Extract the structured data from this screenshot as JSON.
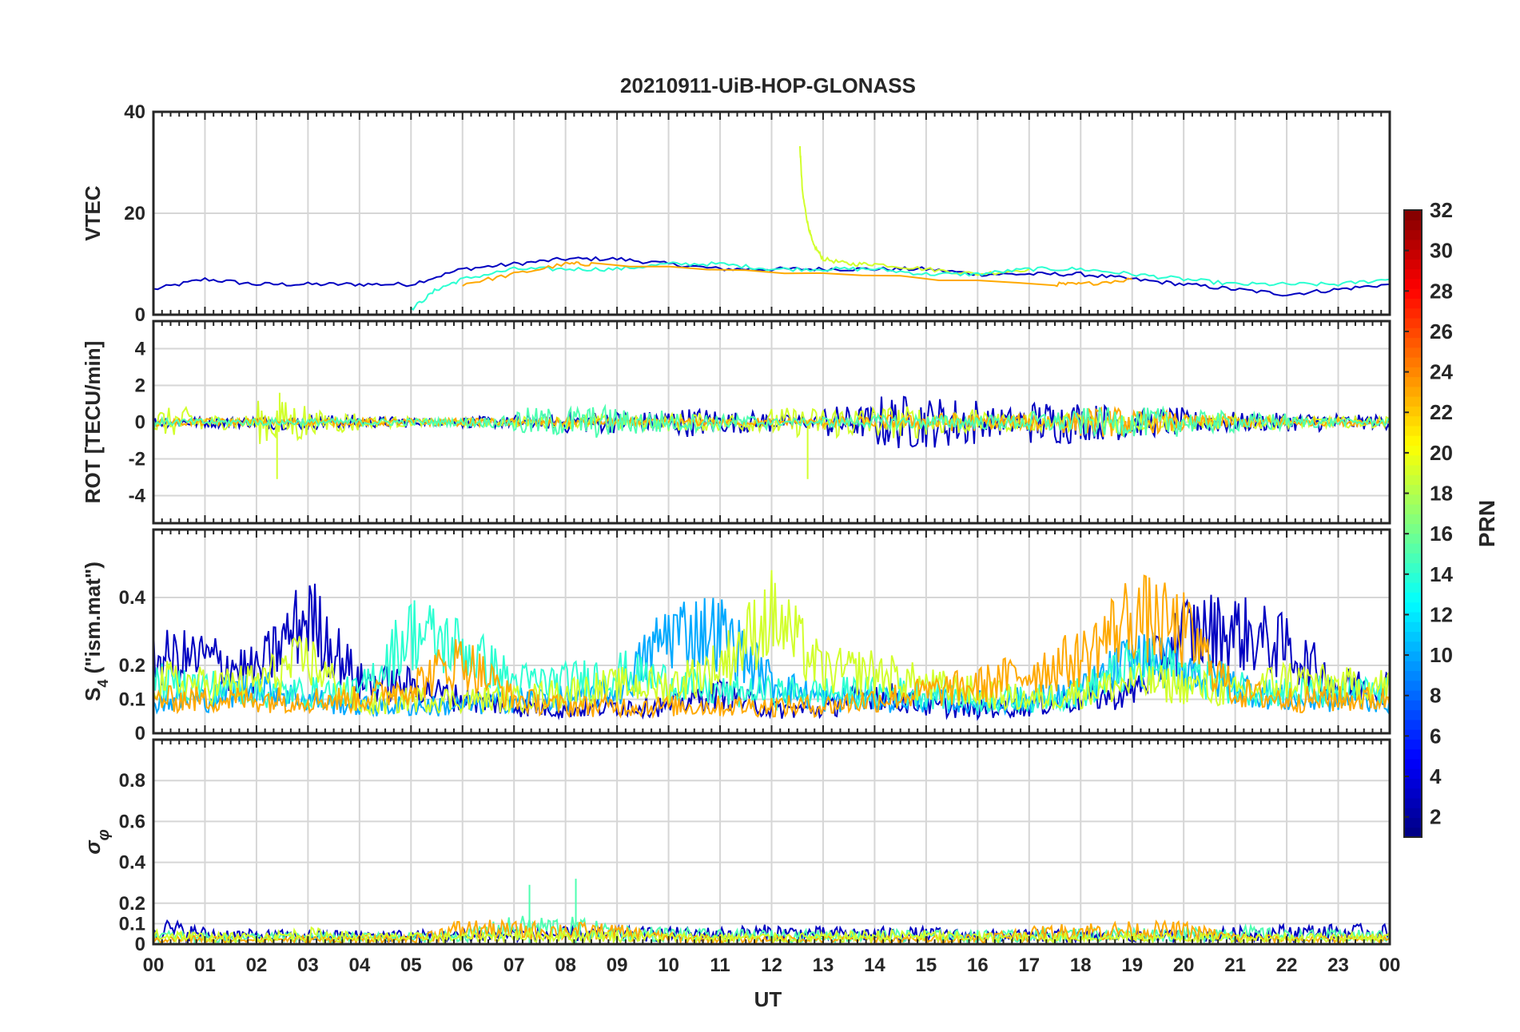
{
  "title": "20210911-UiB-HOP-GLONASS",
  "xlabel": "UT",
  "x_ticks": [
    "00",
    "01",
    "02",
    "03",
    "04",
    "05",
    "06",
    "07",
    "08",
    "09",
    "10",
    "11",
    "12",
    "13",
    "14",
    "15",
    "16",
    "17",
    "18",
    "19",
    "20",
    "21",
    "22",
    "23",
    "00"
  ],
  "colorbar": {
    "label": "PRN",
    "ticks": [
      "2",
      "4",
      "6",
      "8",
      "10",
      "12",
      "14",
      "16",
      "18",
      "20",
      "22",
      "24",
      "26",
      "28",
      "30",
      "32"
    ],
    "range": [
      1,
      32
    ],
    "colormap": "jet"
  },
  "chart_data": [
    {
      "type": "line",
      "panel": "vtec",
      "ylabel": "VTEC",
      "ylim": [
        0,
        40
      ],
      "y_ticks": [
        "0",
        "20",
        "40"
      ],
      "xlim": [
        0,
        24
      ],
      "grid": true,
      "series": [
        {
          "prn": 3,
          "x": [
            0,
            1,
            2,
            3,
            4,
            5,
            6,
            7,
            8,
            9,
            10,
            11,
            12,
            13,
            14,
            15,
            16,
            17,
            18,
            19,
            20,
            21,
            22,
            23,
            24
          ],
          "y": [
            5,
            7,
            6,
            6,
            6,
            6,
            9,
            10,
            11,
            11,
            10,
            9,
            9,
            9,
            9,
            9,
            8,
            8,
            8,
            7,
            6,
            5,
            4,
            5,
            6
          ]
        },
        {
          "prn": 19,
          "x": [
            12.55,
            12.6,
            12.7,
            12.8,
            13.0,
            13.5,
            14.0,
            15.0,
            16.0,
            17.0
          ],
          "y": [
            33,
            24,
            18,
            14,
            11,
            10,
            10,
            9,
            8,
            9
          ]
        },
        {
          "prn": 14,
          "x": [
            5.0,
            5.5,
            6.0,
            7.0,
            8.0,
            9.0,
            10.0,
            11.0,
            12.0,
            13.0,
            14.0,
            15.0,
            16.0,
            17.0,
            18.0,
            19.0,
            20.0,
            21.0,
            22.0,
            23.0,
            24.0
          ],
          "y": [
            1,
            5,
            7,
            9,
            9,
            9,
            10,
            10,
            9,
            9,
            9,
            8,
            8,
            9,
            9,
            8,
            7,
            6,
            6,
            6,
            7
          ]
        },
        {
          "prn": 23,
          "x": [
            6.0,
            7.0,
            8.0,
            8.5,
            17.5,
            18.0,
            19.0
          ],
          "y": [
            6,
            8,
            10,
            10,
            6,
            6,
            7
          ]
        }
      ]
    },
    {
      "type": "line",
      "panel": "rot",
      "ylabel": "ROT [TECU/min]",
      "ylim": [
        -5.5,
        5.5
      ],
      "y_ticks": [
        "-4",
        "-2",
        "0",
        "2",
        "4"
      ],
      "xlim": [
        0,
        24
      ],
      "grid": true,
      "series": [
        {
          "prn": 3,
          "amplitude_by_hour": [
            0.3,
            0.3,
            0.4,
            0.4,
            0.3,
            0.2,
            0.3,
            0.4,
            0.6,
            0.6,
            0.8,
            0.6,
            0.4,
            0.9,
            1.5,
            1.4,
            0.8,
            1.2,
            1.0,
            0.8,
            0.6,
            0.5,
            0.5,
            0.4
          ]
        },
        {
          "prn": 19,
          "amplitude_by_hour": [
            0.8,
            0.4,
            1.2,
            0.6,
            0.3,
            0.2,
            0.2,
            0.3,
            0.4,
            0.4,
            0.5,
            0.5,
            0.8,
            0.9,
            0.9,
            0.7,
            0.5,
            0.5,
            0.6,
            0.5,
            0.4,
            0.4,
            0.3,
            0.3
          ],
          "spikes": [
            {
              "x": 2.4,
              "y": -3.1
            },
            {
              "x": 12.7,
              "y": -3.1
            },
            {
              "x": 2.45,
              "y": 1.6
            }
          ]
        },
        {
          "prn": 23,
          "amplitude_by_hour": [
            0.2,
            0.2,
            0.2,
            0.2,
            0.2,
            0.2,
            0.2,
            0.2,
            0.2,
            0.2,
            0.2,
            0.2,
            0.2,
            0.3,
            0.4,
            0.5,
            0.4,
            0.6,
            0.8,
            0.6,
            0.4,
            0.3,
            0.2,
            0.2
          ]
        },
        {
          "prn": 15,
          "amplitude_by_hour": [
            0.2,
            0.2,
            0.2,
            0.2,
            0.2,
            0.2,
            0.3,
            0.8,
            0.9,
            0.7,
            0.5,
            0.4,
            0.2,
            0.3,
            0.4,
            0.4,
            0.4,
            0.6,
            0.8,
            0.8,
            0.6,
            0.5,
            0.3,
            0.2
          ]
        }
      ]
    },
    {
      "type": "line",
      "panel": "s4",
      "ylabel": "S4 (\"ism.mat\")",
      "ylabel_main": "S",
      "ylabel_sub": "4",
      "ylabel_rest": " (\"ism.mat\")",
      "ylim": [
        0,
        0.6
      ],
      "y_ticks": [
        "0",
        "0.1",
        "0.2",
        "0.4"
      ],
      "y_tick_values": [
        0,
        0.1,
        0.2,
        0.4
      ],
      "xlim": [
        0,
        24
      ],
      "grid": true,
      "series": [
        {
          "prn": 3,
          "level_by_hour": [
            0.22,
            0.22,
            0.18,
            0.35,
            0.15,
            0.14,
            0.1,
            0.08,
            0.07,
            0.08,
            0.08,
            0.12,
            0.07,
            0.07,
            0.12,
            0.08,
            0.07,
            0.08,
            0.1,
            0.12,
            0.3,
            0.3,
            0.25,
            0.14
          ]
        },
        {
          "prn": 10,
          "level_by_hour": [
            0.1,
            0.1,
            0.14,
            0.1,
            0.08,
            0.08,
            0.08,
            0.1,
            0.1,
            0.12,
            0.3,
            0.3,
            0.15,
            0.1,
            0.1,
            0.1,
            0.09,
            0.1,
            0.12,
            0.22,
            0.2,
            0.14,
            0.1,
            0.1
          ]
        },
        {
          "prn": 14,
          "level_by_hour": [
            0.15,
            0.14,
            0.12,
            0.12,
            0.12,
            0.3,
            0.25,
            0.15,
            0.15,
            0.18,
            0.15,
            0.12,
            0.12,
            0.12,
            0.12,
            0.12,
            0.1,
            0.1,
            0.12,
            0.2,
            0.18,
            0.14,
            0.12,
            0.12
          ]
        },
        {
          "prn": 19,
          "level_by_hour": [
            0.16,
            0.14,
            0.15,
            0.22,
            0.08,
            0.1,
            0.1,
            0.1,
            0.12,
            0.14,
            0.14,
            0.2,
            0.35,
            0.18,
            0.18,
            0.14,
            0.12,
            0.1,
            0.12,
            0.15,
            0.14,
            0.12,
            0.16,
            0.14
          ]
        },
        {
          "prn": 23,
          "level_by_hour": [
            0.1,
            0.1,
            0.1,
            0.1,
            0.1,
            0.14,
            0.22,
            0.1,
            0.08,
            0.08,
            0.08,
            0.08,
            0.08,
            0.08,
            0.1,
            0.12,
            0.14,
            0.18,
            0.22,
            0.35,
            0.3,
            0.12,
            0.1,
            0.1
          ]
        }
      ]
    },
    {
      "type": "line",
      "panel": "sigma_phi",
      "ylabel": "σφ",
      "ylabel_main": "σ",
      "ylabel_sub": "φ",
      "ylim": [
        0,
        1.0
      ],
      "y_ticks": [
        "0",
        "0.1",
        "0.2",
        "0.4",
        "0.6",
        "0.8"
      ],
      "y_tick_values": [
        0,
        0.1,
        0.2,
        0.4,
        0.6,
        0.8
      ],
      "xlim": [
        0,
        24
      ],
      "grid": true,
      "series": [
        {
          "prn": 3,
          "level_by_hour": [
            0.1,
            0.06,
            0.05,
            0.05,
            0.05,
            0.05,
            0.05,
            0.06,
            0.06,
            0.06,
            0.06,
            0.06,
            0.07,
            0.06,
            0.06,
            0.06,
            0.05,
            0.05,
            0.05,
            0.05,
            0.05,
            0.06,
            0.07,
            0.07
          ]
        },
        {
          "prn": 15,
          "level_by_hour": [
            0.05,
            0.04,
            0.04,
            0.04,
            0.04,
            0.04,
            0.05,
            0.1,
            0.1,
            0.07,
            0.06,
            0.05,
            0.05,
            0.05,
            0.05,
            0.05,
            0.05,
            0.05,
            0.06,
            0.06,
            0.06,
            0.07,
            0.05,
            0.05
          ],
          "spikes": [
            {
              "x": 7.3,
              "y": 0.29
            },
            {
              "x": 8.2,
              "y": 0.32
            }
          ]
        },
        {
          "prn": 23,
          "level_by_hour": [
            0.03,
            0.03,
            0.03,
            0.03,
            0.03,
            0.03,
            0.09,
            0.08,
            0.08,
            0.07,
            0.04,
            0.03,
            0.03,
            0.03,
            0.03,
            0.03,
            0.04,
            0.06,
            0.08,
            0.08,
            0.08,
            0.04,
            0.03,
            0.03
          ]
        },
        {
          "prn": 19,
          "level_by_hour": [
            0.06,
            0.04,
            0.04,
            0.06,
            0.04,
            0.04,
            0.04,
            0.05,
            0.05,
            0.05,
            0.04,
            0.04,
            0.04,
            0.04,
            0.05,
            0.05,
            0.04,
            0.04,
            0.04,
            0.04,
            0.04,
            0.04,
            0.04,
            0.04
          ]
        }
      ]
    }
  ]
}
